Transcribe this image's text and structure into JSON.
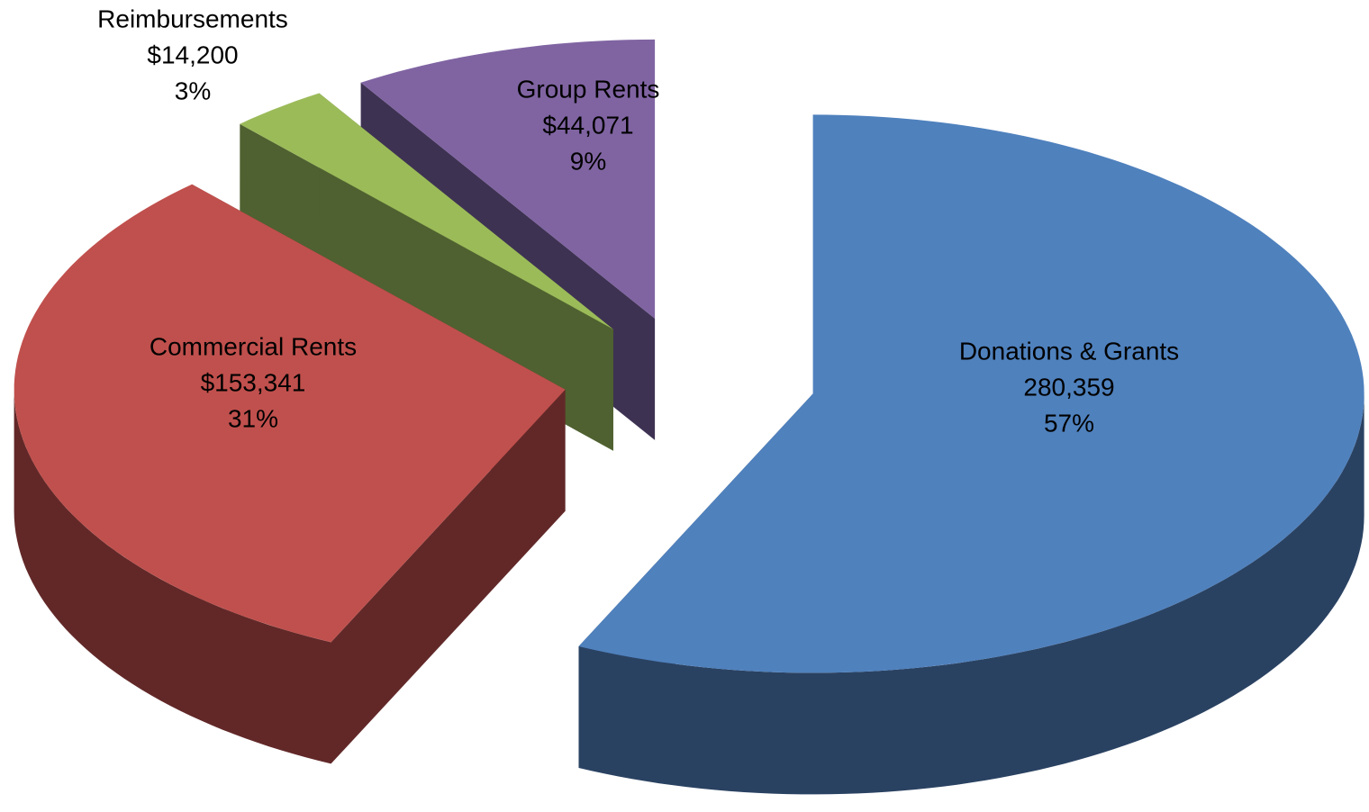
{
  "chart_data": {
    "type": "pie",
    "three_d": true,
    "exploded": true,
    "categories": [
      "Donations & Grants",
      "Commercial Rents",
      "Reimbursements",
      "Group Rents"
    ],
    "values": [
      280359,
      153341,
      14200,
      44071
    ],
    "value_labels": [
      "280,359",
      "$153,341",
      "$14,200",
      "$44,071"
    ],
    "percent_labels": [
      "57%",
      "31%",
      "3%",
      "9%"
    ],
    "colors": [
      "#4f81bd",
      "#c0504d",
      "#9bbb59",
      "#8064a2"
    ],
    "side_colors": [
      "#2a4262",
      "#622828",
      "#4f6130",
      "#3e3253"
    ]
  }
}
